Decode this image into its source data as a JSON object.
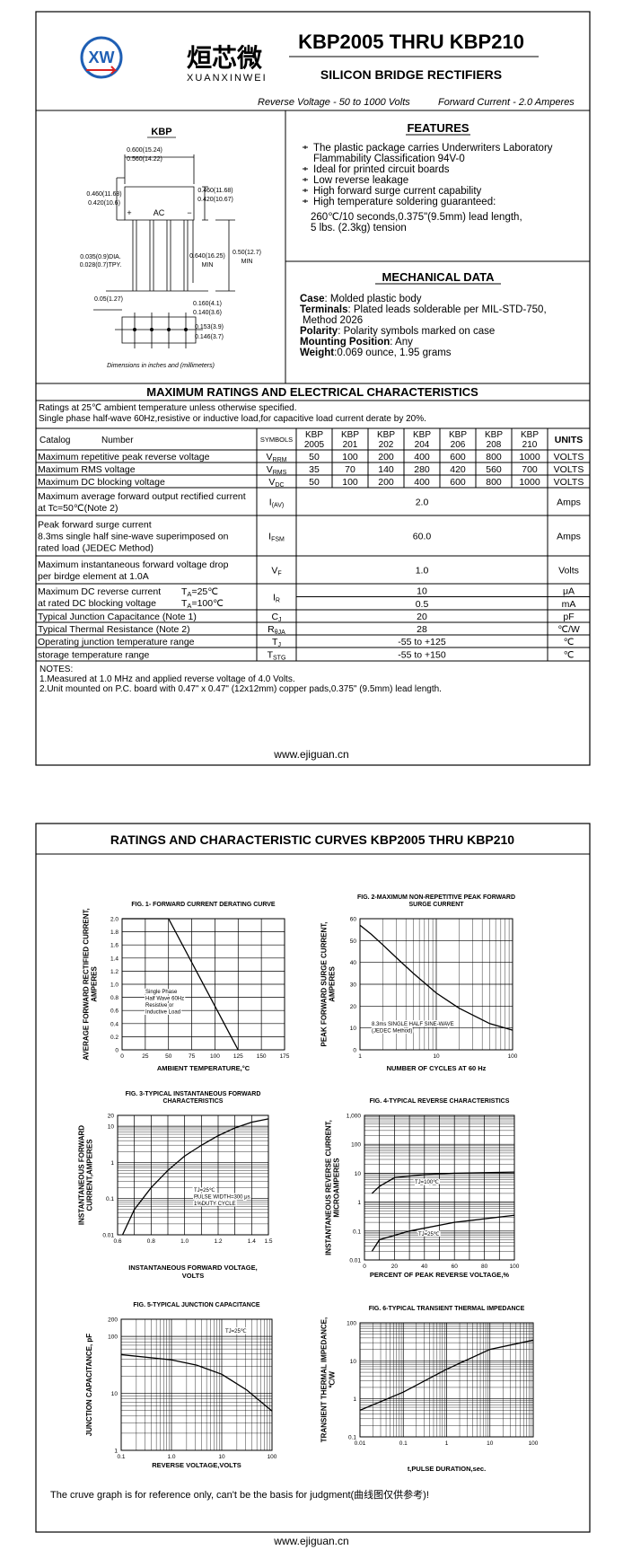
{
  "page1": {
    "logo": {
      "mark": "XW",
      "name": "烜芯微",
      "pinyin": "XUANXINWEI"
    },
    "header": {
      "title": "KBP2005 THRU KBP210",
      "subtitle": "SILICON BRIDGE RECTIFIERS",
      "reverse_voltage": "Reverse Voltage - 50 to 1000 Volts",
      "forward_current": "Forward Current - 2.0 Amperes"
    },
    "package": {
      "title": "KBP",
      "labels": [
        "0.600(15.24)",
        "0.560(14.22)",
        "0.460(11.68)",
        "0.420(10.6)",
        "0.460(11.68)",
        "0.420(10.67)",
        "+",
        "AC",
        "−",
        "0.035(0.9)DIA.",
        "0.028(0.7)TPY.",
        "0.640(16.25)",
        "MIN",
        "0.50(12.7)",
        "MIN",
        "0.05(1.27)",
        "0.160(4.1)",
        "0.140(3.6)",
        "0.153(3.9)",
        "0.146(3.7)"
      ],
      "note": "Dimensions in inches and (millimeters)"
    },
    "features": {
      "title": "FEATURES",
      "items": [
        [
          "The plastic package carries Underwriters Laboratory",
          "Flammability Classification 94V-0"
        ],
        [
          "Ideal for printed circuit boards"
        ],
        [
          "Low reverse leakage"
        ],
        [
          "High forward surge current capability"
        ],
        [
          "High temperature soldering guaranteed:"
        ]
      ],
      "detail": [
        "260℃/10 seconds,0.375\"(9.5mm) lead length,",
        "5 lbs. (2.3kg) tension"
      ]
    },
    "mechanical": {
      "title": "MECHANICAL DATA",
      "items": [
        {
          "label": "Case",
          "lines": [
            ": Molded plastic body"
          ]
        },
        {
          "label": "Terminals",
          "lines": [
            ": Plated leads solderable per MIL-STD-750,",
            "Method 2026"
          ]
        },
        {
          "label": "Polarity",
          "lines": [
            ": Polarity symbols marked on case"
          ]
        },
        {
          "label": "Mounting Position",
          "lines": [
            ": Any"
          ]
        },
        {
          "label": "Weight",
          "lines": [
            ":0.069 ounce, 1.95 grams"
          ]
        }
      ]
    },
    "ratings": {
      "title": "MAXIMUM RATINGS AND ELECTRICAL CHARACTERISTICS",
      "conditions": [
        "Ratings at 25℃ ambient temperature unless otherwise specified.",
        "Single phase half-wave 60Hz,resistive or inductive load,for capacitive load current derate by 20%."
      ],
      "columns": {
        "catalog": "Catalog",
        "number": "Number",
        "symbols": "SYMBOLS",
        "parts": [
          [
            "KBP",
            "2005"
          ],
          [
            "KBP",
            "201"
          ],
          [
            "KBP",
            "202"
          ],
          [
            "KBP",
            "204"
          ],
          [
            "KBP",
            "206"
          ],
          [
            "KBP",
            "208"
          ],
          [
            "KBP",
            "210"
          ]
        ],
        "units": "UNITS"
      },
      "rows": [
        {
          "parameter": [
            "Maximum repetitive peak reverse voltage"
          ],
          "symbol": [
            "V",
            "RRM"
          ],
          "values": [
            "50",
            "100",
            "200",
            "400",
            "600",
            "800",
            "1000"
          ],
          "unit": "VOLTS"
        },
        {
          "parameter": [
            "Maximum RMS voltage"
          ],
          "symbol": [
            "V",
            "RMS"
          ],
          "values": [
            "35",
            "70",
            "140",
            "280",
            "420",
            "560",
            "700"
          ],
          "unit": "VOLTS"
        },
        {
          "parameter": [
            "Maximum DC blocking voltage"
          ],
          "symbol": [
            "V",
            "DC"
          ],
          "values": [
            "50",
            "100",
            "200",
            "400",
            "600",
            "800",
            "1000"
          ],
          "unit": "VOLTS"
        },
        {
          "parameter": [
            "Maximum average forward output rectified current",
            "at Tc=50℃(Note 2)"
          ],
          "symbol": [
            "I",
            "(AV)"
          ],
          "values": [
            "2.0"
          ],
          "unit": "Amps"
        },
        {
          "parameter": [
            "Peak forward surge current",
            "8.3ms single half sine-wave superimposed on",
            "rated load (JEDEC Method)"
          ],
          "symbol": [
            "I",
            "FSM"
          ],
          "values": [
            "60.0"
          ],
          "unit": "Amps"
        },
        {
          "parameter": [
            "Maximum instantaneous forward voltage drop",
            "per birdge element at 1.0A"
          ],
          "symbol": [
            "V",
            "F"
          ],
          "values": [
            "1.0"
          ],
          "unit": "Volts"
        },
        {
          "parameter": [
            "Maximum DC reverse current",
            "at rated DC blocking voltage"
          ],
          "conditions": [
            [
              "T",
              "A",
              "=25℃"
            ],
            [
              "T",
              "A",
              "=100℃"
            ]
          ],
          "symbol": [
            "I",
            "R"
          ],
          "values": [
            "10",
            "0.5"
          ],
          "unit": [
            "μA",
            "mA"
          ]
        },
        {
          "parameter": [
            "Typical Junction Capacitance (Note 1)"
          ],
          "symbol": [
            "C",
            "J"
          ],
          "values": [
            "20"
          ],
          "unit": "pF"
        },
        {
          "parameter": [
            "Typical Thermal Resistance (Note 2)"
          ],
          "symbol": [
            "R",
            "θJA"
          ],
          "values": [
            "28"
          ],
          "unit": "℃/W"
        },
        {
          "parameter": [
            "Operating junction temperature range"
          ],
          "symbol": [
            "T",
            "J"
          ],
          "values": [
            "-55 to +125"
          ],
          "unit": "℃"
        },
        {
          "parameter": [
            "storage temperature range"
          ],
          "symbol": [
            "T",
            "STG"
          ],
          "values": [
            "-55 to +150"
          ],
          "unit": "℃"
        }
      ]
    },
    "notes": [
      "NOTES:",
      "1.Measured at 1.0 MHz and applied reverse voltage of 4.0 Volts.",
      "2.Unit mounted on P.C. board with 0.47\" x 0.47\" (12x12mm) copper pads,0.375\" (9.5mm) lead length."
    ],
    "footer": "www.ejiguan.cn"
  },
  "page2": {
    "title": "RATINGS AND CHARACTERISTIC CURVES KBP2005 THRU KBP210",
    "figures": [
      {
        "title": [
          "FIG. 1- FORWARD CURRENT DERATING CURVE"
        ],
        "y_label": [
          "AVERAGE FORWARD RECTIFIED CURRENT,",
          "AMPERES"
        ],
        "x_label": [
          "AMBIENT TEMPERATURE,°C"
        ],
        "xticks": [
          "0",
          "25",
          "50",
          "75",
          "100",
          "125",
          "150",
          "175"
        ],
        "yticks": [
          "0",
          "0.2",
          "0.4",
          "0.6",
          "0.8",
          "1.0",
          "1.2",
          "1.4",
          "1.6",
          "1.8",
          "2.0"
        ],
        "annotations": [
          [
            "Single Phase",
            "Half Wave 60Hz",
            "Resistive or",
            "Inductive Load"
          ]
        ]
      },
      {
        "title": [
          "FIG. 2-MAXIMUM NON-REPETITIVE PEAK FORWARD",
          "SURGE CURRENT"
        ],
        "y_label": [
          "PEAK FORWARD SURGE CURRENT,",
          "AMPERES"
        ],
        "x_label": [
          "NUMBER OF CYCLES AT 60 Hz"
        ],
        "xticks": [
          "1",
          "10",
          "100"
        ],
        "yticks": [
          "0",
          "10",
          "20",
          "30",
          "40",
          "50",
          "60"
        ],
        "annotations": [
          [
            "8.3ms SINGLE HALF SINE-WAVE",
            "(JEDEC Method)"
          ]
        ]
      },
      {
        "title": [
          "FIG. 3-TYPICAL INSTANTANEOUS FORWARD",
          "CHARACTERISTICS"
        ],
        "y_label": [
          "INSTANTANEOUS FORWARD",
          "CURRENT,AMPERES"
        ],
        "x_label": [
          "INSTANTANEOUS FORWARD VOLTAGE,",
          "VOLTS"
        ],
        "xticks": [
          "0.6",
          "0.8",
          "1.0",
          "1.2",
          "1.4",
          "1.5"
        ],
        "yticks": [
          "0.01",
          "0.1",
          "1",
          "10",
          "20"
        ],
        "annotations": [
          [
            "TJ=25℃",
            "PULSE WIDTH=300 μs",
            "1%DUTY CYCLE"
          ]
        ]
      },
      {
        "title": [
          "FIG. 4-TYPICAL REVERSE CHARACTERISTICS"
        ],
        "y_label": [
          "INSTANTANEOUS REVERSE CURRENT,",
          "MICROAMPERES"
        ],
        "x_label": [
          "PERCENT OF PEAK REVERSE VOLTAGE,%"
        ],
        "xticks": [
          "0",
          "20",
          "40",
          "60",
          "80",
          "100"
        ],
        "yticks": [
          "0.01",
          "0.1",
          "1",
          "10",
          "100",
          "1,000"
        ],
        "annotations": [
          [
            "TJ=100℃"
          ],
          [
            "TJ=25℃"
          ]
        ]
      },
      {
        "title": [
          "FIG. 5-TYPICAL JUNCTION CAPACITANCE"
        ],
        "y_label": [
          "JUNCTION CAPACITANCE, pF"
        ],
        "x_label": [
          "REVERSE VOLTAGE,VOLTS"
        ],
        "xticks": [
          "0.1",
          "1.0",
          "10",
          "100"
        ],
        "yticks": [
          "1",
          "10",
          "100",
          "200"
        ],
        "annotations": [
          [
            "TJ=25℃"
          ]
        ]
      },
      {
        "title": [
          "FIG. 6-TYPICAL TRANSIENT THERMAL IMPEDANCE"
        ],
        "y_label": [
          "TRANSIENT THERMAL IMPEDANCE,",
          "℃/W"
        ],
        "x_label": [
          "t,PULSE DURATION,sec."
        ],
        "xticks": [
          "0.01",
          "0.1",
          "1",
          "10",
          "100"
        ],
        "yticks": [
          "0.1",
          "1",
          "10",
          "100"
        ],
        "annotations": []
      }
    ],
    "note": "The cruve graph is for reference only, can't be the basis for judgment(曲线图仅供参考)!",
    "footer": "www.ejiguan.cn"
  }
}
